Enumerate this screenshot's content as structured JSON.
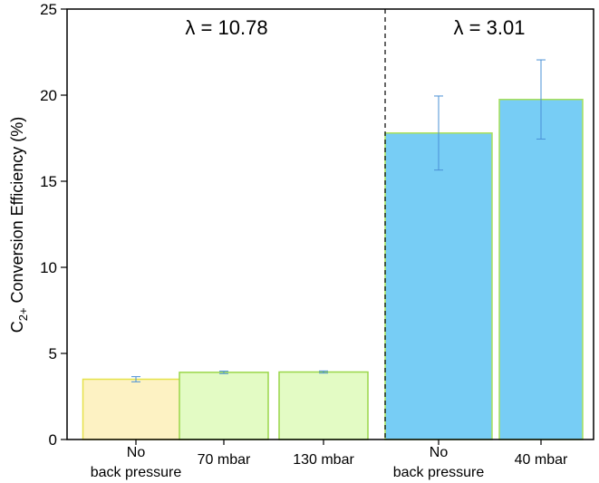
{
  "chart_data": {
    "type": "bar",
    "ylabel_main": "C",
    "ylabel_sub": "2+",
    "ylabel_rest": " Conversion Efficiency (%)",
    "ylim": [
      0,
      25
    ],
    "yticks": [
      "0",
      "5",
      "10",
      "15",
      "20",
      "25"
    ],
    "grid": false,
    "bars": [
      {
        "label_lines": [
          "No",
          "back pressure"
        ],
        "value": 3.5,
        "err": 0.15,
        "fill": "#fdf2c3",
        "stroke": "#e6e24a"
      },
      {
        "label_lines": [
          "70 mbar"
        ],
        "value": 3.9,
        "err": 0.07,
        "fill": "#e3fbc4",
        "stroke": "#9ad64a"
      },
      {
        "label_lines": [
          "130 mbar"
        ],
        "value": 3.92,
        "err": 0.06,
        "fill": "#e3fbc4",
        "stroke": "#9ad64a"
      },
      {
        "label_lines": [
          "No",
          "back pressure"
        ],
        "value": 17.8,
        "err": 2.15,
        "fill": "#77cdf5",
        "stroke": "#a8e05a"
      },
      {
        "label_lines": [
          "40 mbar"
        ],
        "value": 19.75,
        "err": 2.3,
        "fill": "#77cdf5",
        "stroke": "#a8e05a"
      }
    ],
    "errorbar_color": "#4a90d6",
    "annotations": [
      "λ = 10.78",
      "λ = 3.01"
    ]
  }
}
